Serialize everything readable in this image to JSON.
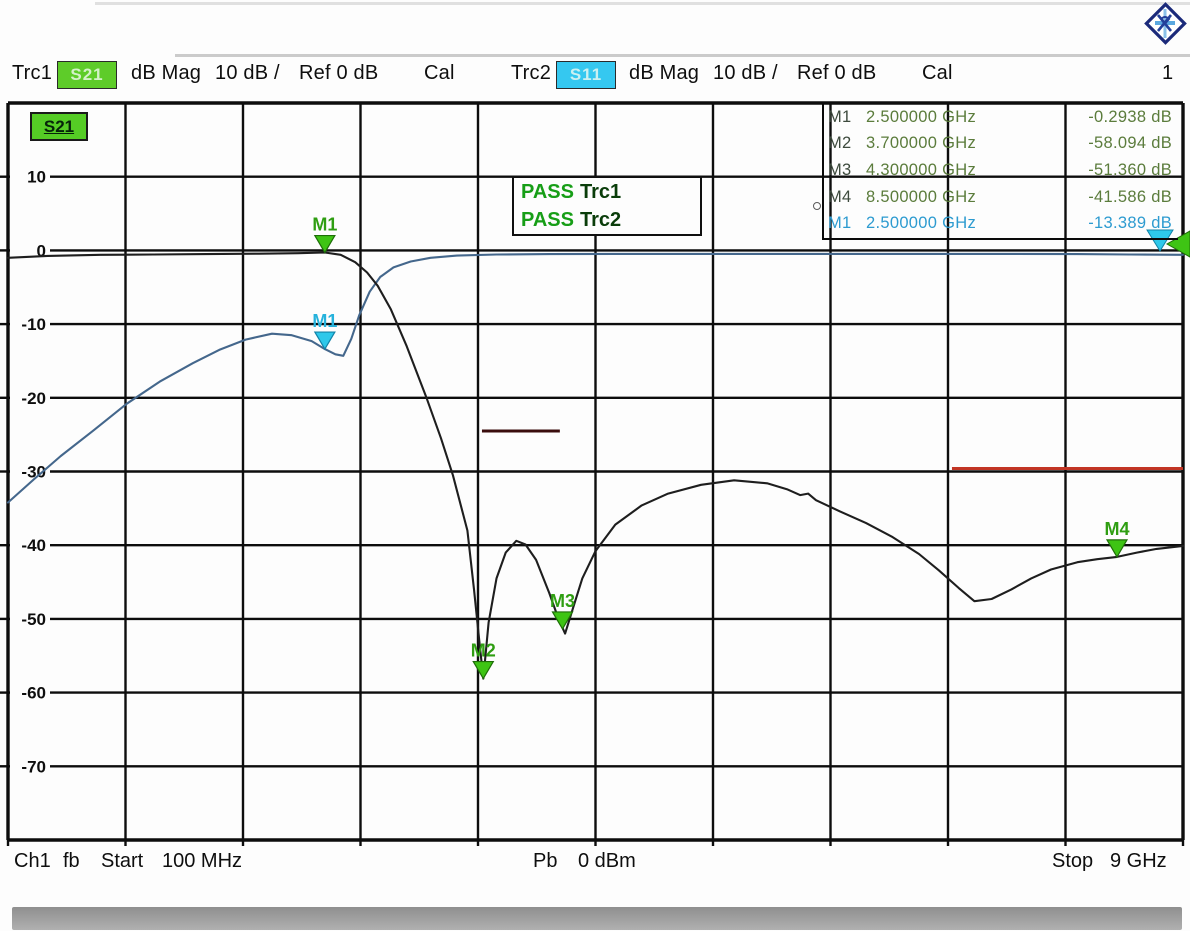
{
  "colors": {
    "trc1_green": "#5ecc29",
    "trc2_cyan": "#35c8f0",
    "pass_green": "#179e17",
    "pass_trace_dark": "#0a3d0a",
    "table_name_green": "#3d4a3d",
    "table_value_green": "#5b7c3c",
    "table_cyan": "#2d9bd0",
    "grid": "#0d0d0d",
    "s21_trace": "#1e1e1e",
    "s11_trace": "#44678c",
    "marker_green_fill": "#3ec414",
    "marker_green_edge": "#1e6e08",
    "marker_green_label": "#2f9e12",
    "marker_cyan_fill": "#2ec8ea",
    "marker_cyan_edge": "#1283a8",
    "marker_cyan_label": "#25b2dc",
    "limit_dark": "#3a0d0d",
    "limit_red": "#c23524",
    "axis_text": "#0e0e0e"
  },
  "traces_bar": {
    "trc1": {
      "label": "Trc1",
      "chip": "S21",
      "format": "dB Mag",
      "scale": "10 dB /",
      "ref": "Ref 0 dB",
      "cal": "Cal"
    },
    "trc2": {
      "label": "Trc2",
      "chip": "S11",
      "format": "dB Mag",
      "scale": "10 dB /",
      "ref": "Ref 0 dB",
      "cal": "Cal"
    },
    "area_number": "1"
  },
  "plot": {
    "s21_badge": "S21",
    "pass_box": [
      {
        "status": "PASS",
        "trace": "Trc1"
      },
      {
        "status": "PASS",
        "trace": "Trc2"
      }
    ],
    "marker_table": [
      {
        "name": "M1",
        "freq": "2.500000 GHz",
        "value": "-0.2938 dB",
        "trace": "Trc1"
      },
      {
        "name": "M2",
        "freq": "3.700000 GHz",
        "value": "-58.094 dB",
        "trace": "Trc1"
      },
      {
        "name": "M3",
        "freq": "4.300000 GHz",
        "value": "-51.360 dB",
        "trace": "Trc1"
      },
      {
        "name": "M4",
        "freq": "8.500000 GHz",
        "value": "-41.586 dB",
        "trace": "Trc1"
      },
      {
        "name": "M1",
        "freq": "2.500000 GHz",
        "value": "-13.389 dB",
        "trace": "Trc2"
      }
    ]
  },
  "footer": {
    "channel": "Ch1",
    "mode": "fb",
    "start_label": "Start",
    "start_value": "100 MHz",
    "power_label": "Pb",
    "power_value": "0 dBm",
    "stop_label": "Stop",
    "stop_value": "9 GHz"
  },
  "icons": {
    "logo": "rohde-schwarz-diamond",
    "marker": "down-triangle",
    "ref_level": "left-arrow-triangle"
  },
  "chart_data": {
    "type": "line",
    "title": "",
    "x_unit": "GHz",
    "y_unit": "dB",
    "xlim": [
      0.1,
      9
    ],
    "ylim": [
      -80,
      20
    ],
    "scale_per_div": 10,
    "grid": true,
    "yticks": [
      {
        "v": 10,
        "label": "10"
      },
      {
        "v": 0,
        "label": "0"
      },
      {
        "v": -10,
        "label": "-10"
      },
      {
        "v": -20,
        "label": "-20"
      },
      {
        "v": -30,
        "label": "-30"
      },
      {
        "v": -40,
        "label": "-40"
      },
      {
        "v": -50,
        "label": "-50"
      },
      {
        "v": -60,
        "label": "-60"
      },
      {
        "v": -70,
        "label": "-70"
      }
    ],
    "series": [
      {
        "name": "S11",
        "color_key": "s11_trace",
        "points": [
          [
            0.1,
            -34.2
          ],
          [
            0.3,
            -31.0
          ],
          [
            0.5,
            -27.9
          ],
          [
            0.75,
            -24.4
          ],
          [
            1.0,
            -20.8
          ],
          [
            1.25,
            -17.8
          ],
          [
            1.5,
            -15.3
          ],
          [
            1.7,
            -13.5
          ],
          [
            1.9,
            -12.1
          ],
          [
            2.1,
            -11.3
          ],
          [
            2.25,
            -11.5
          ],
          [
            2.4,
            -12.3
          ],
          [
            2.5,
            -13.389
          ],
          [
            2.58,
            -14.1
          ],
          [
            2.64,
            -14.3
          ],
          [
            2.7,
            -12.0
          ],
          [
            2.76,
            -8.8
          ],
          [
            2.84,
            -5.6
          ],
          [
            2.92,
            -3.6
          ],
          [
            3.02,
            -2.3
          ],
          [
            3.15,
            -1.5
          ],
          [
            3.3,
            -1.0
          ],
          [
            3.5,
            -0.7
          ],
          [
            3.8,
            -0.55
          ],
          [
            4.2,
            -0.5
          ],
          [
            4.7,
            -0.48
          ],
          [
            5.2,
            -0.48
          ],
          [
            5.7,
            -0.48
          ],
          [
            6.2,
            -0.48
          ],
          [
            6.7,
            -0.48
          ],
          [
            7.2,
            -0.48
          ],
          [
            7.7,
            -0.48
          ],
          [
            8.2,
            -0.5
          ],
          [
            8.6,
            -0.55
          ],
          [
            9.0,
            -0.6
          ]
        ]
      },
      {
        "name": "S21",
        "color_key": "s21_trace",
        "points": [
          [
            0.1,
            -1.0
          ],
          [
            0.4,
            -0.75
          ],
          [
            0.8,
            -0.6
          ],
          [
            1.2,
            -0.55
          ],
          [
            1.6,
            -0.5
          ],
          [
            2.0,
            -0.45
          ],
          [
            2.3,
            -0.38
          ],
          [
            2.5,
            -0.29
          ],
          [
            2.62,
            -0.6
          ],
          [
            2.73,
            -1.6
          ],
          [
            2.82,
            -3.0
          ],
          [
            2.9,
            -4.8
          ],
          [
            3.0,
            -8.0
          ],
          [
            3.12,
            -13.0
          ],
          [
            3.27,
            -20.0
          ],
          [
            3.38,
            -25.5
          ],
          [
            3.47,
            -30.5
          ],
          [
            3.58,
            -38.0
          ],
          [
            3.63,
            -46.0
          ],
          [
            3.67,
            -53.0
          ],
          [
            3.7,
            -58.1
          ],
          [
            3.74,
            -50.5
          ],
          [
            3.8,
            -44.5
          ],
          [
            3.87,
            -41.0
          ],
          [
            3.95,
            -39.4
          ],
          [
            4.02,
            -39.9
          ],
          [
            4.1,
            -42.0
          ],
          [
            4.2,
            -46.5
          ],
          [
            4.27,
            -50.0
          ],
          [
            4.32,
            -52.0
          ],
          [
            4.38,
            -48.5
          ],
          [
            4.45,
            -44.5
          ],
          [
            4.55,
            -40.8
          ],
          [
            4.7,
            -37.2
          ],
          [
            4.9,
            -34.6
          ],
          [
            5.1,
            -33.0
          ],
          [
            5.35,
            -31.8
          ],
          [
            5.6,
            -31.2
          ],
          [
            5.85,
            -31.6
          ],
          [
            6.0,
            -32.4
          ],
          [
            6.1,
            -33.2
          ],
          [
            6.16,
            -33.0
          ],
          [
            6.22,
            -33.9
          ],
          [
            6.4,
            -35.4
          ],
          [
            6.6,
            -37.0
          ],
          [
            6.8,
            -38.9
          ],
          [
            7.0,
            -41.2
          ],
          [
            7.15,
            -43.4
          ],
          [
            7.3,
            -45.8
          ],
          [
            7.42,
            -47.6
          ],
          [
            7.55,
            -47.3
          ],
          [
            7.7,
            -46.0
          ],
          [
            7.85,
            -44.5
          ],
          [
            8.0,
            -43.3
          ],
          [
            8.2,
            -42.3
          ],
          [
            8.35,
            -41.9
          ],
          [
            8.5,
            -41.586
          ],
          [
            8.65,
            -41.0
          ],
          [
            8.8,
            -40.5
          ],
          [
            9.0,
            -40.1
          ]
        ]
      }
    ],
    "markers": [
      {
        "id": "M1",
        "trace": "S21",
        "x": 2.5,
        "y": -0.2938
      },
      {
        "id": "M2",
        "trace": "S21",
        "x": 3.7,
        "y": -58.094
      },
      {
        "id": "M3",
        "trace": "S21",
        "x": 4.3,
        "y": -51.36
      },
      {
        "id": "M4",
        "trace": "S21",
        "x": 8.5,
        "y": -41.586
      },
      {
        "id": "M1",
        "trace": "S11",
        "x": 2.5,
        "y": -13.389
      }
    ],
    "limit_lines": [
      {
        "x1": 3.69,
        "x2": 4.28,
        "y": -24.5,
        "color_key": "limit_dark"
      },
      {
        "x1": 7.25,
        "x2": 9.0,
        "y": -29.6,
        "color_key": "limit_red"
      }
    ],
    "legend_position": "top-bar"
  }
}
